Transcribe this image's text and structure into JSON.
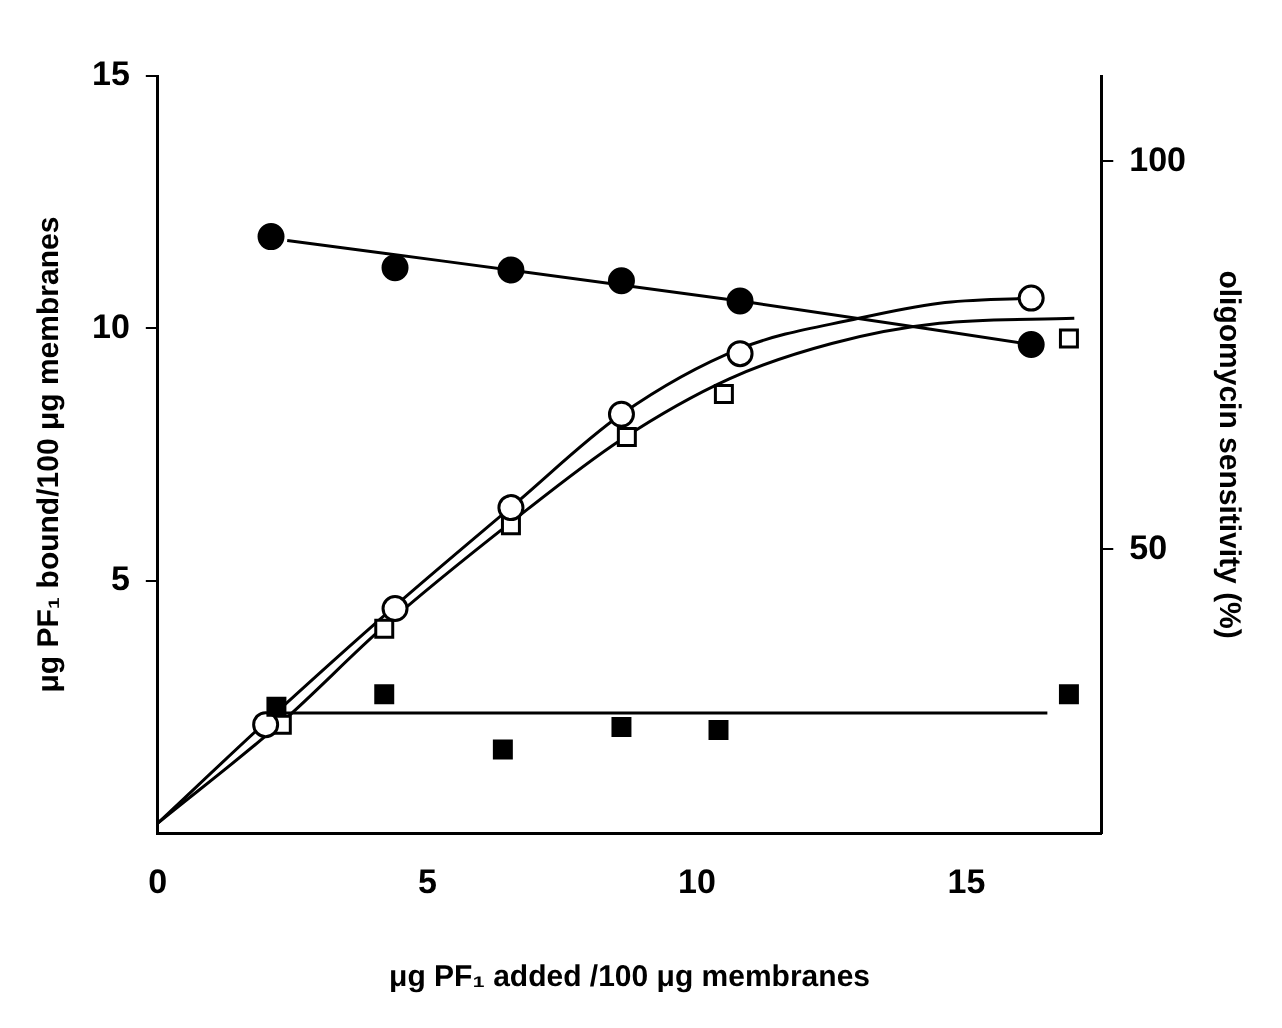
{
  "chart_data": {
    "type": "scatter",
    "xlabel": "μg PF₁ added /100 μg membranes",
    "ylabel": "μg PF₁ bound/100 μg membranes",
    "y2label": "oligomycin sensitivity (%)",
    "xlim": [
      0,
      17.5
    ],
    "xticks": [
      0,
      5,
      10,
      15
    ],
    "ylim": [
      0,
      15
    ],
    "yticks": [
      5,
      10,
      15
    ],
    "y2lim": [
      13.4,
      111
    ],
    "y2ticks": [
      50,
      100
    ],
    "grid": false,
    "legend": false,
    "series": [
      {
        "type": "line",
        "color": "#000000",
        "marker": "none",
        "axis": "y2",
        "x": [
          2.4,
          11,
          16.0
        ],
        "values": [
          89.8,
          81.8,
          76.6
        ]
      },
      {
        "type": "line",
        "color": "#000000",
        "marker": "none",
        "axis": "y2",
        "x": [
          2.2,
          16.5
        ],
        "values": [
          28.9,
          28.9
        ]
      },
      {
        "type": "line",
        "color": "#000000",
        "marker": "none",
        "x": [
          0,
          2.0,
          4.4,
          6.6,
          8.6,
          10.8,
          13,
          14.5,
          16.2
        ],
        "values": [
          0.2,
          2.2,
          4.5,
          6.5,
          8.3,
          9.6,
          10.2,
          10.5,
          10.6
        ]
      },
      {
        "type": "line",
        "color": "#000000",
        "marker": "none",
        "x": [
          0,
          2.3,
          4.2,
          6.6,
          8.6,
          10.6,
          12.5,
          14.5,
          17
        ],
        "values": [
          0.2,
          2.2,
          4.1,
          6.2,
          7.8,
          9.0,
          9.7,
          10.1,
          10.2
        ]
      },
      {
        "color": "#000000",
        "marker": "circle",
        "axis": "y2",
        "x": [
          2.1,
          4.4,
          6.55,
          8.6,
          10.8,
          16.2
        ],
        "values": [
          90.3,
          86.3,
          86.0,
          84.6,
          82.0,
          76.4
        ]
      },
      {
        "color": "#000000",
        "marker": "square",
        "axis": "y2",
        "x": [
          2.2,
          4.2,
          6.4,
          8.6,
          10.4,
          16.9
        ],
        "values": [
          29.7,
          31.3,
          24.2,
          27.1,
          26.7,
          31.3
        ]
      },
      {
        "color": "#ffffff",
        "marker": "circle",
        "x": [
          2.0,
          4.4,
          6.55,
          8.6,
          10.8,
          16.2
        ],
        "values": [
          2.15,
          4.45,
          6.45,
          8.3,
          9.5,
          10.6
        ]
      },
      {
        "color": "#ffffff",
        "marker": "square",
        "x": [
          2.3,
          4.2,
          6.55,
          8.7,
          10.5,
          16.9
        ],
        "values": [
          2.15,
          4.05,
          6.1,
          7.85,
          8.7,
          9.8
        ]
      }
    ]
  }
}
